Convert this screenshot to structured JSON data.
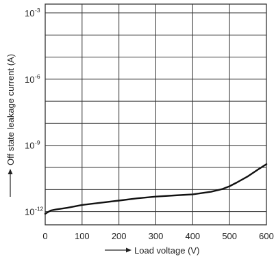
{
  "chart_data": {
    "type": "line",
    "xlabel": "Load voltage (V)",
    "ylabel": "Off state leakage current (A)",
    "xlim": [
      0,
      600
    ],
    "ylim_exp": [
      -12.6,
      -2.6
    ],
    "y_scale": "log",
    "grid": true,
    "x_ticks": [
      {
        "value": 0,
        "label": "0"
      },
      {
        "value": 100,
        "label": "100"
      },
      {
        "value": 200,
        "label": "200"
      },
      {
        "value": 300,
        "label": "300"
      },
      {
        "value": 400,
        "label": "400"
      },
      {
        "value": 500,
        "label": "500"
      },
      {
        "value": 600,
        "label": "600"
      }
    ],
    "y_ticks": [
      {
        "exp": -3,
        "base": "10",
        "sup": "-3"
      },
      {
        "exp": -6,
        "base": "10",
        "sup": "-6"
      },
      {
        "exp": -9,
        "base": "10",
        "sup": "-9"
      },
      {
        "exp": -12,
        "base": "10",
        "sup": "-12"
      }
    ],
    "series": [
      {
        "x": [
          0,
          5,
          15,
          30,
          60,
          100,
          150,
          200,
          250,
          300,
          350,
          400,
          450,
          480,
          500,
          520,
          550,
          575,
          600
        ],
        "y_exp": [
          -12.1,
          -12.05,
          -11.95,
          -11.9,
          -11.83,
          -11.7,
          -11.6,
          -11.5,
          -11.4,
          -11.32,
          -11.27,
          -11.22,
          -11.1,
          -10.98,
          -10.85,
          -10.68,
          -10.4,
          -10.12,
          -9.85
        ]
      }
    ]
  }
}
